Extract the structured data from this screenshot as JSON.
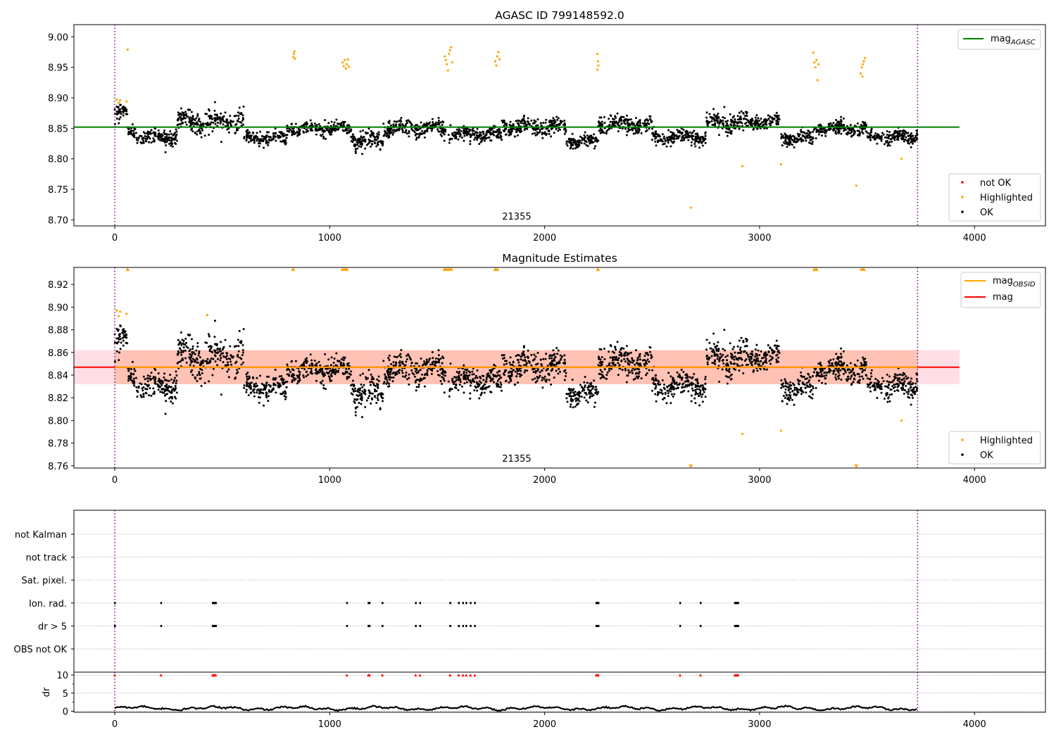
{
  "colors": {
    "ok": "#000000",
    "highlighted": "#ffa500",
    "not_ok": "#ff0000",
    "agasc_line": "#008000",
    "obsid_line": "#ffa500",
    "mag_line": "#ff0000",
    "obs_boundary": "#800080",
    "band_pink": "#ffc0cb",
    "band_orange": "#ffa07a"
  },
  "chart_data": [
    {
      "type": "scatter",
      "title": "AGASC ID 799148592.0",
      "xlim": [
        -190,
        4330
      ],
      "ylim": [
        8.69,
        9.02
      ],
      "x_ticks": [
        0,
        1000,
        2000,
        3000,
        4000
      ],
      "y_ticks": [
        8.7,
        8.75,
        8.8,
        8.85,
        8.9,
        8.95,
        9.0
      ],
      "y_tick_labels": [
        "8.70",
        "8.75",
        "8.80",
        "8.85",
        "8.90",
        "8.95",
        "9.00"
      ],
      "obsid_label": "21355",
      "obs_boundaries": [
        0,
        3735
      ],
      "reference_lines": [
        {
          "name": "mag_AGASC",
          "label_main": "mag",
          "label_sub": "AGASC",
          "y": 8.852,
          "x_range": [
            -190,
            3930
          ],
          "color": "#008000"
        }
      ],
      "legends": [
        {
          "placement": "top-right",
          "entries": [
            {
              "kind": "line",
              "label_main": "mag",
              "label_sub": "AGASC",
              "color": "#008000"
            }
          ]
        },
        {
          "placement": "bottom-right",
          "entries": [
            {
              "kind": "point",
              "label": "not OK",
              "color": "#ff0000"
            },
            {
              "kind": "point",
              "label": "Highlighted",
              "color": "#ffa500"
            },
            {
              "kind": "point",
              "label": "OK",
              "color": "#000000"
            }
          ]
        }
      ],
      "highlighted_points": [
        {
          "x": 10,
          "y": 8.897
        },
        {
          "x": 18,
          "y": 8.892
        },
        {
          "x": 25,
          "y": 8.896
        },
        {
          "x": 55,
          "y": 8.894
        },
        {
          "x": 60,
          "y": 8.979
        },
        {
          "x": 830,
          "y": 8.967
        },
        {
          "x": 833,
          "y": 8.972
        },
        {
          "x": 836,
          "y": 8.976
        },
        {
          "x": 838,
          "y": 8.964
        },
        {
          "x": 1060,
          "y": 8.958
        },
        {
          "x": 1065,
          "y": 8.952
        },
        {
          "x": 1070,
          "y": 8.962
        },
        {
          "x": 1075,
          "y": 8.948
        },
        {
          "x": 1080,
          "y": 8.955
        },
        {
          "x": 1085,
          "y": 8.963
        },
        {
          "x": 1090,
          "y": 8.951
        },
        {
          "x": 1535,
          "y": 8.968
        },
        {
          "x": 1540,
          "y": 8.962
        },
        {
          "x": 1545,
          "y": 8.955
        },
        {
          "x": 1550,
          "y": 8.945
        },
        {
          "x": 1555,
          "y": 8.972
        },
        {
          "x": 1560,
          "y": 8.978
        },
        {
          "x": 1565,
          "y": 8.983
        },
        {
          "x": 1570,
          "y": 8.958
        },
        {
          "x": 1770,
          "y": 8.96
        },
        {
          "x": 1775,
          "y": 8.953
        },
        {
          "x": 1780,
          "y": 8.968
        },
        {
          "x": 1785,
          "y": 8.975
        },
        {
          "x": 1790,
          "y": 8.963
        },
        {
          "x": 2245,
          "y": 8.972
        },
        {
          "x": 2248,
          "y": 8.96
        },
        {
          "x": 2250,
          "y": 8.953
        },
        {
          "x": 2246,
          "y": 8.946
        },
        {
          "x": 3250,
          "y": 8.974
        },
        {
          "x": 3255,
          "y": 8.958
        },
        {
          "x": 3260,
          "y": 8.95
        },
        {
          "x": 3265,
          "y": 8.962
        },
        {
          "x": 3270,
          "y": 8.929
        },
        {
          "x": 3275,
          "y": 8.955
        },
        {
          "x": 3470,
          "y": 8.94
        },
        {
          "x": 3475,
          "y": 8.95
        },
        {
          "x": 3480,
          "y": 8.955
        },
        {
          "x": 3485,
          "y": 8.96
        },
        {
          "x": 3490,
          "y": 8.965
        },
        {
          "x": 3478,
          "y": 8.935
        },
        {
          "x": 2680,
          "y": 8.72
        },
        {
          "x": 2920,
          "y": 8.788
        },
        {
          "x": 3100,
          "y": 8.791
        },
        {
          "x": 3450,
          "y": 8.756
        },
        {
          "x": 3660,
          "y": 8.8
        }
      ],
      "ok_series": {
        "x_range": [
          0,
          3730
        ],
        "segments": [
          {
            "x": [
              0,
              60
            ],
            "y": 8.875,
            "spread": 0.012
          },
          {
            "x": [
              60,
              100
            ],
            "y": 8.845,
            "spread": 0.008
          },
          {
            "x": [
              100,
              290
            ],
            "y": 8.836,
            "spread": 0.01
          },
          {
            "x": [
              290,
              600
            ],
            "y": 8.862,
            "spread": 0.016
          },
          {
            "x": [
              600,
              800
            ],
            "y": 8.834,
            "spread": 0.009
          },
          {
            "x": [
              800,
              1100
            ],
            "y": 8.85,
            "spread": 0.01
          },
          {
            "x": [
              1100,
              1250
            ],
            "y": 8.83,
            "spread": 0.01
          },
          {
            "x": [
              1250,
              1550
            ],
            "y": 8.85,
            "spread": 0.012
          },
          {
            "x": [
              1550,
              1800
            ],
            "y": 8.84,
            "spread": 0.01
          },
          {
            "x": [
              1800,
              2100
            ],
            "y": 8.853,
            "spread": 0.012
          },
          {
            "x": [
              2100,
              2250
            ],
            "y": 8.83,
            "spread": 0.008
          },
          {
            "x": [
              2250,
              2500
            ],
            "y": 8.856,
            "spread": 0.012
          },
          {
            "x": [
              2500,
              2750
            ],
            "y": 8.836,
            "spread": 0.01
          },
          {
            "x": [
              2750,
              2950
            ],
            "y": 8.86,
            "spread": 0.014
          },
          {
            "x": [
              2950,
              3100
            ],
            "y": 8.86,
            "spread": 0.01
          },
          {
            "x": [
              3100,
              3250
            ],
            "y": 8.833,
            "spread": 0.01
          },
          {
            "x": [
              3250,
              3500
            ],
            "y": 8.85,
            "spread": 0.01
          },
          {
            "x": [
              3500,
              3735
            ],
            "y": 8.836,
            "spread": 0.009
          }
        ]
      }
    },
    {
      "type": "scatter",
      "title": "Magnitude Estimates",
      "xlim": [
        -190,
        4330
      ],
      "ylim": [
        8.758,
        8.935
      ],
      "x_ticks": [
        0,
        1000,
        2000,
        3000,
        4000
      ],
      "y_ticks": [
        8.76,
        8.78,
        8.8,
        8.82,
        8.84,
        8.86,
        8.88,
        8.9,
        8.92
      ],
      "y_tick_labels": [
        "8.76",
        "8.78",
        "8.80",
        "8.82",
        "8.84",
        "8.86",
        "8.88",
        "8.90",
        "8.92"
      ],
      "obsid_label": "21355",
      "obs_boundaries": [
        0,
        3735
      ],
      "reference_lines": [
        {
          "name": "mag",
          "y": 8.847,
          "x_range": [
            -190,
            3930
          ],
          "color": "#ff0000"
        },
        {
          "name": "mag_OBSID",
          "y": 8.847,
          "x_range": [
            0,
            3735
          ],
          "color": "#ffa500"
        }
      ],
      "bands": [
        {
          "name": "mag",
          "y_range": [
            8.832,
            8.862
          ],
          "x_range": [
            -190,
            3930
          ],
          "color": "#ffc0cb"
        },
        {
          "name": "mag_OBSID",
          "y_range": [
            8.832,
            8.862
          ],
          "x_range": [
            0,
            3735
          ],
          "color": "#ffa07a"
        }
      ],
      "legends": [
        {
          "placement": "top-right",
          "entries": [
            {
              "kind": "line",
              "label_main": "mag",
              "label_sub": "OBSID",
              "color": "#ffa500"
            },
            {
              "kind": "line",
              "label_main": "mag",
              "label_sub": "",
              "color": "#ff0000"
            }
          ]
        },
        {
          "placement": "bottom-right",
          "entries": [
            {
              "kind": "point",
              "label": "Highlighted",
              "color": "#ffa500"
            },
            {
              "kind": "point",
              "label": "OK",
              "color": "#000000"
            }
          ]
        }
      ],
      "offscale_markers": [
        {
          "x": 60,
          "dir": "up"
        },
        {
          "x": 830,
          "dir": "up"
        },
        {
          "x": 1060,
          "dir": "up"
        },
        {
          "x": 1070,
          "dir": "up"
        },
        {
          "x": 1080,
          "dir": "up"
        },
        {
          "x": 1535,
          "dir": "up"
        },
        {
          "x": 1545,
          "dir": "up"
        },
        {
          "x": 1555,
          "dir": "up"
        },
        {
          "x": 1565,
          "dir": "up"
        },
        {
          "x": 1770,
          "dir": "up"
        },
        {
          "x": 1780,
          "dir": "up"
        },
        {
          "x": 2248,
          "dir": "up"
        },
        {
          "x": 3255,
          "dir": "up"
        },
        {
          "x": 3265,
          "dir": "up"
        },
        {
          "x": 3475,
          "dir": "up"
        },
        {
          "x": 3485,
          "dir": "up"
        },
        {
          "x": 2680,
          "dir": "down"
        },
        {
          "x": 3450,
          "dir": "down"
        }
      ],
      "highlighted_points": [
        {
          "x": 10,
          "y": 8.897
        },
        {
          "x": 18,
          "y": 8.892
        },
        {
          "x": 25,
          "y": 8.896
        },
        {
          "x": 55,
          "y": 8.894
        },
        {
          "x": 430,
          "y": 8.893
        },
        {
          "x": 2920,
          "y": 8.788
        },
        {
          "x": 3100,
          "y": 8.791
        },
        {
          "x": 3660,
          "y": 8.8
        }
      ]
    },
    {
      "type": "scatter",
      "title": "",
      "categories": [
        "not Kalman",
        "not track",
        "Sat. pixel.",
        "Ion. rad.",
        "dr > 5",
        "OBS not OK"
      ],
      "xlim": [
        -190,
        4330
      ],
      "obs_boundaries": [
        0,
        3735
      ],
      "flags": {
        "Ion. rad.": [
          0,
          215,
          455,
          460,
          465,
          470,
          1080,
          1180,
          1185,
          1245,
          1400,
          1420,
          1560,
          1600,
          1620,
          1635,
          1655,
          1675,
          2240,
          2245,
          2250,
          2630,
          2725,
          2885,
          2890,
          2895,
          2900
        ],
        "dr > 5": [
          0,
          215,
          455,
          460,
          465,
          470,
          1080,
          1180,
          1185,
          1245,
          1400,
          1420,
          1560,
          1600,
          1620,
          1635,
          1655,
          1675,
          2240,
          2245,
          2250,
          2630,
          2725,
          2885,
          2890,
          2895,
          2900
        ]
      },
      "dr_panel": {
        "ylabel": "dr",
        "ylim": [
          -0.3,
          10.8
        ],
        "y_ticks": [
          0,
          5,
          10
        ],
        "y_tick_labels": [
          "0",
          "5",
          "10"
        ],
        "x_ticks": [
          0,
          1000,
          2000,
          3000,
          4000
        ],
        "clip_value": 10,
        "clipped_x": [
          0,
          215,
          455,
          460,
          465,
          470,
          1080,
          1180,
          1185,
          1245,
          1400,
          1420,
          1560,
          1600,
          1620,
          1635,
          1655,
          1675,
          2240,
          2245,
          2250,
          2630,
          2725,
          2885,
          2890,
          2895,
          2900
        ],
        "baseline": 0.8
      }
    }
  ]
}
